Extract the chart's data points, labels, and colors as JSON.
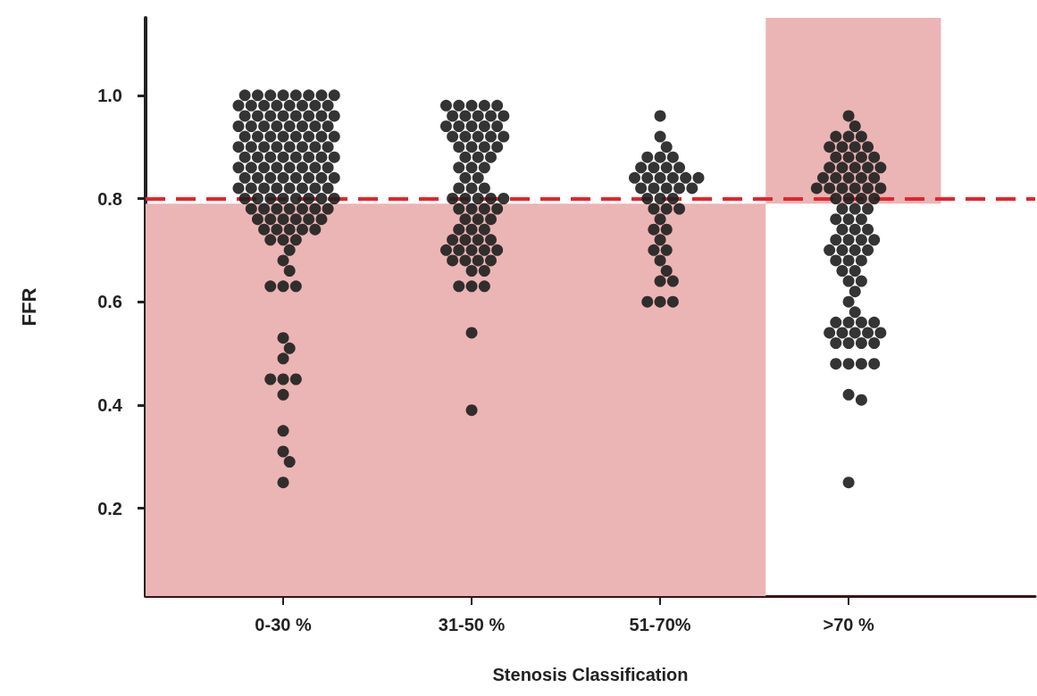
{
  "chart_data": {
    "type": "scatter",
    "xlabel": "Stenosis Classification",
    "ylabel": "FFR",
    "categories": [
      "0-30 %",
      "31-50 %",
      "51-70%",
      ">70 %"
    ],
    "ylim": [
      0.03,
      1.15
    ],
    "yticks": [
      0.2,
      0.4,
      0.6,
      0.8,
      {
        "value": 1,
        "label": "1.0"
      }
    ],
    "grid": false,
    "marker": "circle",
    "ref_lines": [
      {
        "axis": "y",
        "value": 0.8,
        "color": "#e8232a",
        "line_style": "dashed"
      }
    ],
    "bands": [
      {
        "axis": "y",
        "from": 0.03,
        "to": 0.79,
        "color": "#ebb5b5"
      },
      {
        "axis": "y",
        "from": 0.79,
        "to": 1.15,
        "color": "#ebb5b5"
      }
    ],
    "series": [
      {
        "color": "#1e1e1e",
        "x": [
          "0-30 %",
          "0-30 %",
          "0-30 %",
          "0-30 %",
          "0-30 %",
          "0-30 %",
          "0-30 %",
          "0-30 %",
          "0-30 %",
          "0-30 %",
          "0-30 %",
          "0-30 %",
          "0-30 %",
          "0-30 %",
          "0-30 %",
          "0-30 %",
          "0-30 %",
          "0-30 %",
          "0-30 %",
          "0-30 %",
          "0-30 %",
          "0-30 %",
          "0-30 %",
          "0-30 %",
          "0-30 %",
          "0-30 %",
          "0-30 %",
          "0-30 %",
          "0-30 %",
          "0-30 %",
          "0-30 %",
          "0-30 %",
          "0-30 %",
          "0-30 %",
          "0-30 %",
          "0-30 %",
          "0-30 %",
          "0-30 %",
          "0-30 %",
          "0-30 %",
          "0-30 %",
          "0-30 %",
          "0-30 %",
          "0-30 %",
          "0-30 %",
          "0-30 %",
          "0-30 %",
          "0-30 %",
          "0-30 %",
          "0-30 %",
          "0-30 %",
          "0-30 %",
          "0-30 %",
          "0-30 %",
          "0-30 %",
          "0-30 %",
          "0-30 %",
          "0-30 %",
          "0-30 %",
          "0-30 %",
          "0-30 %",
          "0-30 %",
          "0-30 %",
          "0-30 %",
          "0-30 %",
          "0-30 %",
          "0-30 %",
          "0-30 %",
          "0-30 %",
          "0-30 %",
          "0-30 %",
          "0-30 %",
          "0-30 %",
          "0-30 %",
          "0-30 %",
          "0-30 %",
          "0-30 %",
          "0-30 %",
          "0-30 %",
          "0-30 %",
          "0-30 %",
          "0-30 %",
          "0-30 %",
          "0-30 %",
          "0-30 %",
          "0-30 %",
          "0-30 %",
          "0-30 %",
          "0-30 %",
          "0-30 %",
          "0-30 %",
          "0-30 %",
          "0-30 %",
          "0-30 %",
          "0-30 %",
          "0-30 %",
          "0-30 %",
          "0-30 %",
          "0-30 %",
          "0-30 %",
          "0-30 %",
          "0-30 %",
          "0-30 %",
          "0-30 %",
          "0-30 %",
          "0-30 %",
          "0-30 %",
          "0-30 %",
          "0-30 %",
          "0-30 %",
          "0-30 %",
          "0-30 %",
          "0-30 %",
          "0-30 %",
          "0-30 %",
          "0-30 %",
          "0-30 %",
          "0-30 %",
          "0-30 %",
          "0-30 %",
          "0-30 %",
          "0-30 %",
          "0-30 %",
          "0-30 %",
          "0-30 %",
          "0-30 %"
        ],
        "values": [
          1,
          1,
          1,
          1,
          1,
          1,
          1,
          1,
          0.98,
          0.98,
          0.98,
          0.98,
          0.98,
          0.98,
          0.98,
          0.98,
          0.96,
          0.96,
          0.96,
          0.96,
          0.96,
          0.96,
          0.96,
          0.96,
          0.94,
          0.94,
          0.94,
          0.94,
          0.94,
          0.94,
          0.94,
          0.94,
          0.92,
          0.92,
          0.92,
          0.92,
          0.92,
          0.92,
          0.92,
          0.92,
          0.9,
          0.9,
          0.9,
          0.9,
          0.9,
          0.9,
          0.9,
          0.9,
          0.88,
          0.88,
          0.88,
          0.88,
          0.88,
          0.88,
          0.88,
          0.88,
          0.86,
          0.86,
          0.86,
          0.86,
          0.86,
          0.86,
          0.86,
          0.86,
          0.84,
          0.84,
          0.84,
          0.84,
          0.84,
          0.84,
          0.84,
          0.84,
          0.82,
          0.82,
          0.82,
          0.82,
          0.82,
          0.82,
          0.82,
          0.82,
          0.8,
          0.8,
          0.8,
          0.8,
          0.8,
          0.8,
          0.8,
          0.8,
          0.78,
          0.78,
          0.78,
          0.78,
          0.78,
          0.78,
          0.78,
          0.76,
          0.76,
          0.76,
          0.76,
          0.76,
          0.76,
          0.74,
          0.74,
          0.74,
          0.74,
          0.74,
          0.72,
          0.72,
          0.72,
          0.7,
          0.68,
          0.66,
          0.63,
          0.63,
          0.63,
          0.53,
          0.51,
          0.49,
          0.45,
          0.45,
          0.45,
          0.42,
          0.35,
          0.31,
          0.29,
          0.25
        ]
      },
      {
        "color": "#1e1e1e",
        "x": [
          "31-50 %",
          "31-50 %",
          "31-50 %",
          "31-50 %",
          "31-50 %",
          "31-50 %",
          "31-50 %",
          "31-50 %",
          "31-50 %",
          "31-50 %",
          "31-50 %",
          "31-50 %",
          "31-50 %",
          "31-50 %",
          "31-50 %",
          "31-50 %",
          "31-50 %",
          "31-50 %",
          "31-50 %",
          "31-50 %",
          "31-50 %",
          "31-50 %",
          "31-50 %",
          "31-50 %",
          "31-50 %",
          "31-50 %",
          "31-50 %",
          "31-50 %",
          "31-50 %",
          "31-50 %",
          "31-50 %",
          "31-50 %",
          "31-50 %",
          "31-50 %",
          "31-50 %",
          "31-50 %",
          "31-50 %",
          "31-50 %",
          "31-50 %",
          "31-50 %",
          "31-50 %",
          "31-50 %",
          "31-50 %",
          "31-50 %",
          "31-50 %",
          "31-50 %",
          "31-50 %",
          "31-50 %",
          "31-50 %",
          "31-50 %",
          "31-50 %",
          "31-50 %",
          "31-50 %",
          "31-50 %",
          "31-50 %",
          "31-50 %",
          "31-50 %",
          "31-50 %",
          "31-50 %",
          "31-50 %",
          "31-50 %",
          "31-50 %",
          "31-50 %",
          "31-50 %",
          "31-50 %",
          "31-50 %",
          "31-50 %",
          "31-50 %",
          "31-50 %",
          "31-50 %"
        ],
        "values": [
          0.98,
          0.98,
          0.98,
          0.98,
          0.98,
          0.96,
          0.96,
          0.96,
          0.96,
          0.96,
          0.94,
          0.94,
          0.94,
          0.94,
          0.94,
          0.92,
          0.92,
          0.92,
          0.92,
          0.92,
          0.9,
          0.9,
          0.9,
          0.9,
          0.88,
          0.88,
          0.88,
          0.86,
          0.86,
          0.86,
          0.84,
          0.84,
          0.82,
          0.82,
          0.82,
          0.8,
          0.8,
          0.8,
          0.8,
          0.8,
          0.78,
          0.78,
          0.78,
          0.78,
          0.76,
          0.76,
          0.76,
          0.74,
          0.74,
          0.74,
          0.72,
          0.72,
          0.72,
          0.72,
          0.7,
          0.7,
          0.7,
          0.7,
          0.7,
          0.68,
          0.68,
          0.68,
          0.68,
          0.66,
          0.66,
          0.63,
          0.63,
          0.63,
          0.54,
          0.39
        ]
      },
      {
        "color": "#1e1e1e",
        "x": [
          "51-70%",
          "51-70%",
          "51-70%",
          "51-70%",
          "51-70%",
          "51-70%",
          "51-70%",
          "51-70%",
          "51-70%",
          "51-70%",
          "51-70%",
          "51-70%",
          "51-70%",
          "51-70%",
          "51-70%",
          "51-70%",
          "51-70%",
          "51-70%",
          "51-70%",
          "51-70%",
          "51-70%",
          "51-70%",
          "51-70%",
          "51-70%",
          "51-70%",
          "51-70%",
          "51-70%",
          "51-70%",
          "51-70%",
          "51-70%",
          "51-70%",
          "51-70%",
          "51-70%",
          "51-70%",
          "51-70%",
          "51-70%",
          "51-70%",
          "51-70%",
          "51-70%",
          "51-70%"
        ],
        "values": [
          0.96,
          0.92,
          0.9,
          0.88,
          0.88,
          0.88,
          0.86,
          0.86,
          0.86,
          0.86,
          0.84,
          0.84,
          0.84,
          0.84,
          0.84,
          0.84,
          0.82,
          0.82,
          0.82,
          0.82,
          0.82,
          0.8,
          0.8,
          0.8,
          0.78,
          0.78,
          0.78,
          0.76,
          0.74,
          0.74,
          0.72,
          0.7,
          0.7,
          0.68,
          0.66,
          0.64,
          0.64,
          0.6,
          0.6,
          0.6
        ]
      },
      {
        "color": "#1e1e1e",
        "x": [
          ">70 %",
          ">70 %",
          ">70 %",
          ">70 %",
          ">70 %",
          ">70 %",
          ">70 %",
          ">70 %",
          ">70 %",
          ">70 %",
          ">70 %",
          ">70 %",
          ">70 %",
          ">70 %",
          ">70 %",
          ">70 %",
          ">70 %",
          ">70 %",
          ">70 %",
          ">70 %",
          ">70 %",
          ">70 %",
          ">70 %",
          ">70 %",
          ">70 %",
          ">70 %",
          ">70 %",
          ">70 %",
          ">70 %",
          ">70 %",
          ">70 %",
          ">70 %",
          ">70 %",
          ">70 %",
          ">70 %",
          ">70 %",
          ">70 %",
          ">70 %",
          ">70 %",
          ">70 %",
          ">70 %",
          ">70 %",
          ">70 %",
          ">70 %",
          ">70 %",
          ">70 %",
          ">70 %",
          ">70 %",
          ">70 %",
          ">70 %",
          ">70 %",
          ">70 %",
          ">70 %",
          ">70 %",
          ">70 %",
          ">70 %",
          ">70 %",
          ">70 %",
          ">70 %",
          ">70 %",
          ">70 %",
          ">70 %",
          ">70 %",
          ">70 %",
          ">70 %",
          ">70 %",
          ">70 %",
          ">70 %",
          ">70 %",
          ">70 %",
          ">70 %",
          ">70 %",
          ">70 %",
          ">70 %",
          ">70 %",
          ">70 %",
          ">70 %",
          ">70 %",
          ">70 %",
          ">70 %"
        ],
        "values": [
          0.96,
          0.94,
          0.92,
          0.92,
          0.92,
          0.9,
          0.9,
          0.9,
          0.9,
          0.88,
          0.88,
          0.88,
          0.88,
          0.86,
          0.86,
          0.86,
          0.86,
          0.86,
          0.84,
          0.84,
          0.84,
          0.84,
          0.84,
          0.82,
          0.82,
          0.82,
          0.82,
          0.82,
          0.82,
          0.8,
          0.8,
          0.8,
          0.8,
          0.78,
          0.78,
          0.78,
          0.76,
          0.76,
          0.76,
          0.74,
          0.74,
          0.74,
          0.72,
          0.72,
          0.72,
          0.72,
          0.7,
          0.7,
          0.7,
          0.7,
          0.68,
          0.68,
          0.68,
          0.66,
          0.66,
          0.64,
          0.64,
          0.62,
          0.6,
          0.58,
          0.56,
          0.56,
          0.56,
          0.56,
          0.54,
          0.54,
          0.54,
          0.54,
          0.54,
          0.52,
          0.52,
          0.52,
          0.52,
          0.48,
          0.48,
          0.48,
          0.48,
          0.42,
          0.41,
          0.25
        ]
      }
    ]
  }
}
